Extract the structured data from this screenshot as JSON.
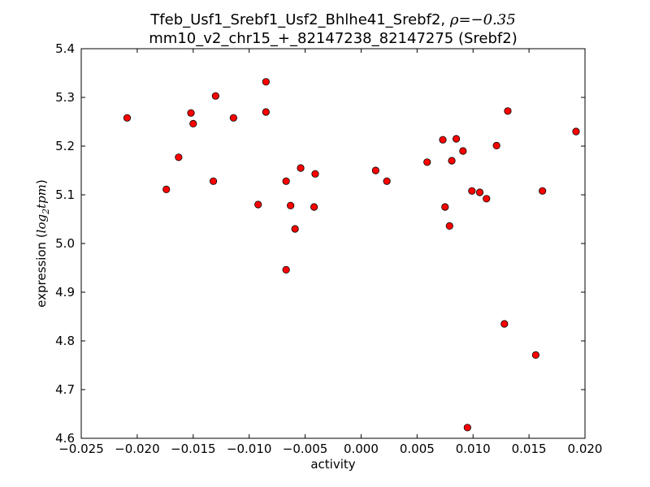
{
  "chart_data": {
    "type": "scatter",
    "title_line1_prefix": "Tfeb_Usf1_Srebf1_Usf2_Bhlhe41_Srebf2, ",
    "title_line1_rho": "ρ",
    "title_line1_value": "=−0.35",
    "title_line2": "mm10_v2_chr15_+_82147238_82147275 (Srebf2)",
    "xlabel": "activity",
    "ylabel_prefix": "expression (",
    "ylabel_math": "log",
    "ylabel_sub": "2",
    "ylabel_math2": "tpm",
    "ylabel_suffix": ")",
    "xlim": [
      -0.025,
      0.02
    ],
    "ylim": [
      4.6,
      5.4
    ],
    "x_ticks": [
      -0.025,
      -0.02,
      -0.015,
      -0.01,
      -0.005,
      0.0,
      0.005,
      0.01,
      0.015,
      0.02
    ],
    "x_tick_labels": [
      "−0.025",
      "−0.020",
      "−0.015",
      "−0.010",
      "−0.005",
      "0.000",
      "0.005",
      "0.010",
      "0.015",
      "0.020"
    ],
    "y_ticks": [
      4.6,
      4.7,
      4.8,
      4.9,
      5.0,
      5.1,
      5.2,
      5.3,
      5.4
    ],
    "y_tick_labels": [
      "4.6",
      "4.7",
      "4.8",
      "4.9",
      "5.0",
      "5.1",
      "5.2",
      "5.3",
      "5.4"
    ],
    "grid": false,
    "marker_color": "#ff0000",
    "marker_edge": "#000000",
    "points": [
      {
        "x": -0.0209,
        "y": 5.258
      },
      {
        "x": -0.0174,
        "y": 5.111
      },
      {
        "x": -0.0163,
        "y": 5.177
      },
      {
        "x": -0.0152,
        "y": 5.268
      },
      {
        "x": -0.015,
        "y": 5.246
      },
      {
        "x": -0.0132,
        "y": 5.128
      },
      {
        "x": -0.013,
        "y": 5.303
      },
      {
        "x": -0.0114,
        "y": 5.258
      },
      {
        "x": -0.0092,
        "y": 5.08
      },
      {
        "x": -0.0085,
        "y": 5.332
      },
      {
        "x": -0.0085,
        "y": 5.27
      },
      {
        "x": -0.0067,
        "y": 4.946
      },
      {
        "x": -0.0067,
        "y": 5.128
      },
      {
        "x": -0.0063,
        "y": 5.078
      },
      {
        "x": -0.0059,
        "y": 5.03
      },
      {
        "x": -0.0054,
        "y": 5.155
      },
      {
        "x": -0.0042,
        "y": 5.075
      },
      {
        "x": -0.0041,
        "y": 5.143
      },
      {
        "x": 0.0013,
        "y": 5.15
      },
      {
        "x": 0.0023,
        "y": 5.128
      },
      {
        "x": 0.0059,
        "y": 5.167
      },
      {
        "x": 0.0073,
        "y": 5.213
      },
      {
        "x": 0.0075,
        "y": 5.075
      },
      {
        "x": 0.0079,
        "y": 5.036
      },
      {
        "x": 0.0081,
        "y": 5.17
      },
      {
        "x": 0.0085,
        "y": 5.215
      },
      {
        "x": 0.0091,
        "y": 5.19
      },
      {
        "x": 0.0095,
        "y": 4.622
      },
      {
        "x": 0.0099,
        "y": 5.108
      },
      {
        "x": 0.0106,
        "y": 5.105
      },
      {
        "x": 0.0112,
        "y": 5.092
      },
      {
        "x": 0.0121,
        "y": 5.201
      },
      {
        "x": 0.0128,
        "y": 4.835
      },
      {
        "x": 0.0131,
        "y": 5.272
      },
      {
        "x": 0.0156,
        "y": 4.771
      },
      {
        "x": 0.0162,
        "y": 5.108
      },
      {
        "x": 0.0192,
        "y": 5.23
      }
    ]
  }
}
